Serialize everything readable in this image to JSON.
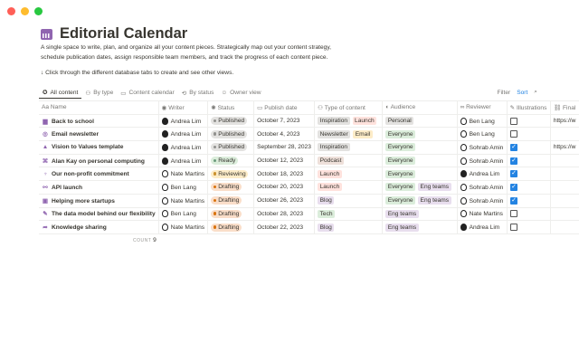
{
  "window": {
    "controls": [
      "#ff5f57",
      "#febc2e",
      "#28c840"
    ]
  },
  "page": {
    "icon": "calendar-icon",
    "title": "Editorial Calendar",
    "description": "A single space to write, plan, and organize all your content pieces. Strategically map out your content strategy, schedule publication dates, assign responsible team members, and track the progress of each content piece.",
    "hint": "↓ Click through the different database tabs to create and see other views."
  },
  "tabs": [
    {
      "label": "All content",
      "icon": "✪",
      "active": true
    },
    {
      "label": "By type",
      "icon": "⚇"
    },
    {
      "label": "Content calendar",
      "icon": "▭"
    },
    {
      "label": "By status",
      "icon": "⟲"
    },
    {
      "label": "Owner view",
      "icon": "☺"
    }
  ],
  "toolbar": {
    "filter": "Filter",
    "sort": "Sort",
    "search_icon": "search-icon"
  },
  "columns": [
    {
      "label": "Name",
      "icon": "Aa"
    },
    {
      "label": "Writer",
      "icon": "◉"
    },
    {
      "label": "Status",
      "icon": "✺"
    },
    {
      "label": "Publish date",
      "icon": "▭"
    },
    {
      "label": "Type of content",
      "icon": "⚇"
    },
    {
      "label": "Audience",
      "icon": "◐"
    },
    {
      "label": "Reviewer",
      "icon": "∞"
    },
    {
      "label": "Illustrations",
      "icon": "✎"
    },
    {
      "label": "Final",
      "icon": "⛓"
    }
  ],
  "colors": {
    "gray": "#e3e2e0",
    "red": "#ffe2dd",
    "yellow": "#fdecc8",
    "orange": "#fadec9",
    "green": "#dbeddb",
    "purple": "#e8deee",
    "brown": "#eee0da",
    "accent": "#9065b0"
  },
  "status_styles": {
    "Published": [
      "#e3e2e0",
      "#91918e"
    ],
    "Ready": [
      "#dbeddb",
      "#6c9b7d"
    ],
    "Reviewing": [
      "#fdecc8",
      "#cb912f"
    ],
    "Drafting": [
      "#fadec9",
      "#d9730d"
    ]
  },
  "tag_colors": {
    "Inspiration": "gray",
    "Launch": "red",
    "Newsletter": "gray",
    "Email": "yellow",
    "Podcast": "brown",
    "Blog": "purple",
    "Tech": "green",
    "Personal": "gray",
    "Everyone": "green",
    "Eng teams": "purple"
  },
  "rows": [
    {
      "icon": "▆",
      "name": "Back to school",
      "writer": "Andrea Lim",
      "status": "Published",
      "date": "October 7, 2023",
      "types": [
        "Inspiration",
        "Launch"
      ],
      "audience": [
        "Personal"
      ],
      "reviewer": "Ben Lang",
      "illustrations": false,
      "final": "https://w"
    },
    {
      "icon": "◎",
      "name": "Email newsletter",
      "writer": "Andrea Lim",
      "status": "Published",
      "date": "October 4, 2023",
      "types": [
        "Newsletter",
        "Email"
      ],
      "audience": [
        "Everyone"
      ],
      "reviewer": "Ben Lang",
      "illustrations": false,
      "final": ""
    },
    {
      "icon": "▲",
      "name": "Vision to Values template",
      "writer": "Andrea Lim",
      "status": "Published",
      "date": "September 28, 2023",
      "types": [
        "Inspiration"
      ],
      "audience": [
        "Everyone"
      ],
      "reviewer": "Sohrab Amin",
      "illustrations": true,
      "final": "https://w"
    },
    {
      "icon": "⌘",
      "name": "Alan Kay on personal computing",
      "writer": "Andrea Lim",
      "status": "Ready",
      "date": "October 12, 2023",
      "types": [
        "Podcast"
      ],
      "audience": [
        "Everyone"
      ],
      "reviewer": "Sohrab Amin",
      "illustrations": true,
      "final": ""
    },
    {
      "icon": "♆",
      "name": "Our non-profit commitment",
      "writer": "Nate Martins",
      "status": "Reviewing",
      "date": "October 18, 2023",
      "types": [
        "Launch"
      ],
      "audience": [
        "Everyone"
      ],
      "reviewer": "Andrea Lim",
      "illustrations": true,
      "final": ""
    },
    {
      "icon": "⚯",
      "name": "API launch",
      "writer": "Ben Lang",
      "status": "Drafting",
      "date": "October 20, 2023",
      "types": [
        "Launch"
      ],
      "audience": [
        "Everyone",
        "Eng teams"
      ],
      "reviewer": "Sohrab Amin",
      "illustrations": true,
      "final": ""
    },
    {
      "icon": "▣",
      "name": "Helping more startups",
      "writer": "Nate Martins",
      "status": "Drafting",
      "date": "October 26, 2023",
      "types": [
        "Blog"
      ],
      "audience": [
        "Everyone",
        "Eng teams"
      ],
      "reviewer": "Sohrab Amin",
      "illustrations": true,
      "final": ""
    },
    {
      "icon": "✎",
      "name": "The data model behind our flexibility",
      "writer": "Ben Lang",
      "status": "Drafting",
      "date": "October 28, 2023",
      "types": [
        "Tech"
      ],
      "audience": [
        "Eng teams"
      ],
      "reviewer": "Nate Martins",
      "illustrations": false,
      "final": ""
    },
    {
      "icon": "➦",
      "name": "Knowledge sharing",
      "writer": "Nate Martins",
      "status": "Drafting",
      "date": "October 22, 2023",
      "types": [
        "Blog"
      ],
      "audience": [
        "Eng teams"
      ],
      "reviewer": "Andrea Lim",
      "illustrations": false,
      "final": ""
    }
  ],
  "footer": {
    "count_label": "COUNT",
    "count": "9"
  }
}
